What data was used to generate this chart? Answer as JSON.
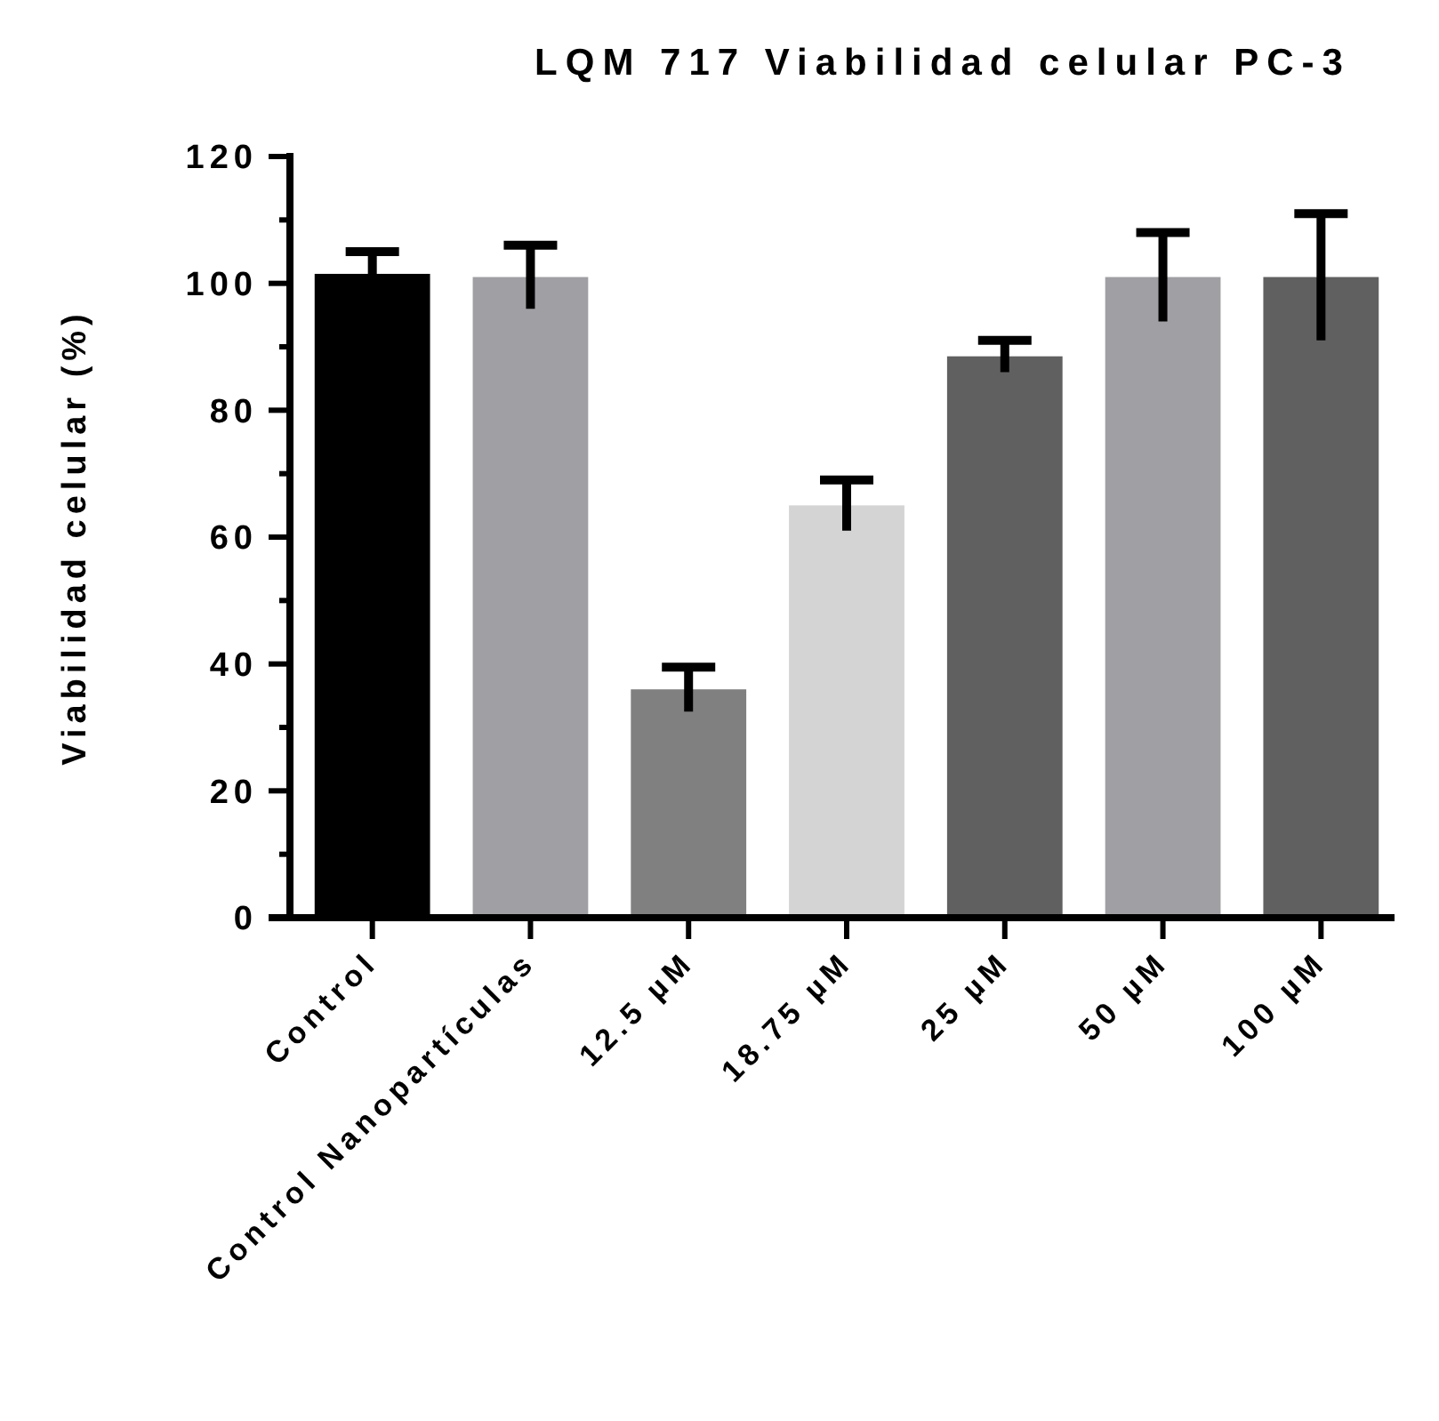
{
  "chart_data": {
    "type": "bar",
    "title": "LQM 717 Viabilidad celular PC-3",
    "ylabel": "Viabilidad celular (%)",
    "categories": [
      "Control",
      "Control Nanopartículas",
      "12.5 µM",
      "18.75 µM",
      "25 µM",
      "50 µM",
      "100 µM"
    ],
    "values": [
      101.5,
      101,
      36,
      65,
      88.5,
      101,
      101
    ],
    "errors": [
      3.5,
      5,
      3.5,
      4,
      2.5,
      7,
      10
    ],
    "colors": [
      "#000000",
      "#a09fa4",
      "#808080",
      "#d4d4d4",
      "#606060",
      "#a09fa4",
      "#606060"
    ],
    "ylim": [
      0,
      120
    ],
    "yticks": [
      0,
      {
        "value": 10,
        "label": null
      },
      20,
      {
        "value": 30,
        "label": null
      },
      40,
      {
        "value": 50,
        "label": null
      },
      60,
      {
        "value": 70,
        "label": null
      },
      80,
      {
        "value": 90,
        "label": null
      },
      100,
      {
        "value": 110,
        "label": null
      },
      120
    ],
    "grid": false
  }
}
